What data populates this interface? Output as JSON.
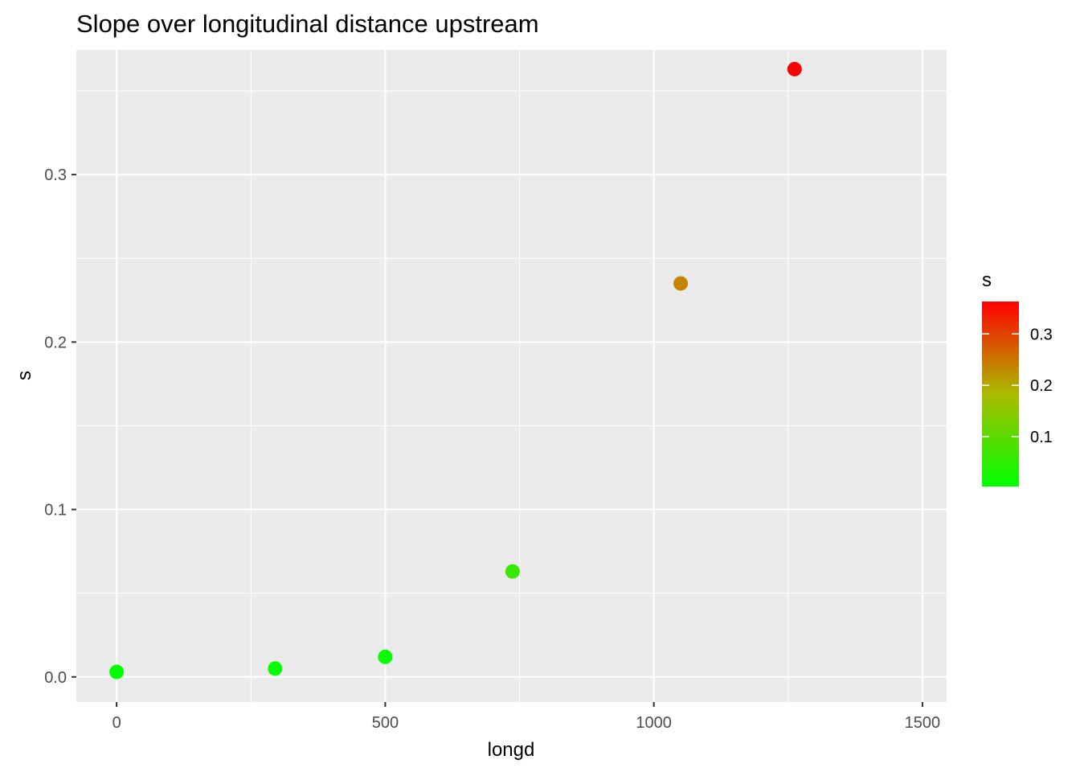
{
  "chart_data": {
    "type": "scatter",
    "title": "Slope over longitudinal distance upstream",
    "xlabel": "longd",
    "ylabel": "s",
    "xlim": [
      -75,
      1545
    ],
    "ylim": [
      -0.015,
      0.3745
    ],
    "x_ticks": [
      0,
      500,
      1000,
      1500
    ],
    "x_tick_labels": [
      "0",
      "500",
      "1000",
      "1500"
    ],
    "y_ticks": [
      0.0,
      0.1,
      0.2,
      0.3
    ],
    "y_tick_labels": [
      "0.0",
      "0.1",
      "0.2",
      "0.3"
    ],
    "grid": true,
    "points": [
      {
        "x": 0,
        "y": 0.003
      },
      {
        "x": 295,
        "y": 0.005
      },
      {
        "x": 500,
        "y": 0.012
      },
      {
        "x": 737,
        "y": 0.063
      },
      {
        "x": 1050,
        "y": 0.235
      },
      {
        "x": 1262,
        "y": 0.363
      }
    ],
    "color_scale": {
      "variable": "s",
      "low_color": "#00ff00",
      "high_color": "#ff0000",
      "min": 0.003,
      "max": 0.363,
      "ticks": [
        0.1,
        0.2,
        0.3
      ],
      "tick_labels": [
        "0.1",
        "0.2",
        "0.3"
      ]
    },
    "colors": {
      "panel_background": "#ebebeb",
      "grid": "#ffffff"
    },
    "legend_position": "right"
  }
}
